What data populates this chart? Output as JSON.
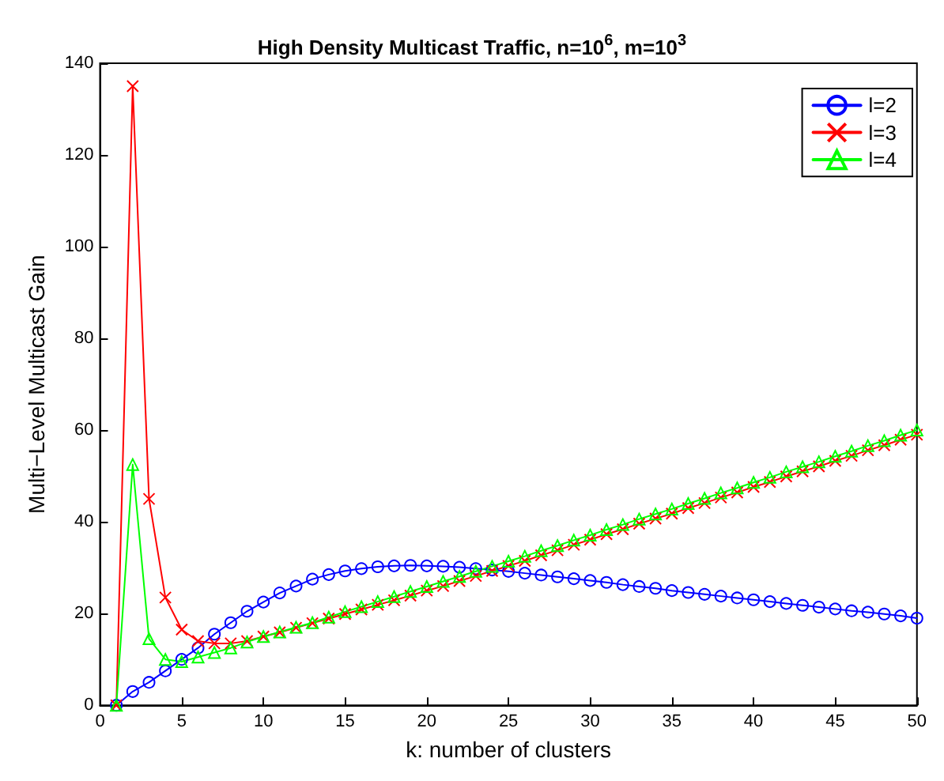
{
  "chart_data": {
    "type": "line",
    "title": "High Density Multicast Traffic, n=10$^{6}$, m=10$^{3}$",
    "xlabel": "k: number of clusters",
    "ylabel": "Multi−Level Multicast Gain",
    "x": [
      1,
      2,
      3,
      4,
      5,
      6,
      7,
      8,
      9,
      10,
      11,
      12,
      13,
      14,
      15,
      16,
      17,
      18,
      19,
      20,
      21,
      22,
      23,
      24,
      25,
      26,
      27,
      28,
      29,
      30,
      31,
      32,
      33,
      34,
      35,
      36,
      37,
      38,
      39,
      40,
      41,
      42,
      43,
      44,
      45,
      46,
      47,
      48,
      49,
      50
    ],
    "series": [
      {
        "name": "l=2",
        "color": "#0000ff",
        "marker": "circle",
        "values": [
          0,
          3,
          5,
          7.5,
          10,
          12.5,
          15.5,
          18,
          20.5,
          22.5,
          24.5,
          26,
          27.5,
          28.5,
          29.3,
          29.8,
          30.2,
          30.4,
          30.5,
          30.4,
          30.3,
          30.1,
          29.8,
          29.5,
          29.2,
          28.8,
          28.4,
          28,
          27.6,
          27.2,
          26.8,
          26.3,
          25.9,
          25.5,
          25,
          24.6,
          24.2,
          23.8,
          23.4,
          23,
          22.6,
          22.2,
          21.8,
          21.4,
          21,
          20.6,
          20.3,
          19.9,
          19.5,
          19
        ]
      },
      {
        "name": "l=3",
        "color": "#ff0000",
        "marker": "cross",
        "values": [
          0,
          135,
          45,
          23.5,
          16.5,
          14,
          13.5,
          13.5,
          14,
          15,
          15.9,
          16.9,
          17.9,
          18.9,
          19.9,
          20.9,
          21.9,
          22.9,
          23.9,
          25,
          26,
          27.1,
          28.2,
          29.3,
          30.4,
          31.5,
          32.7,
          33.8,
          35,
          36.1,
          37.3,
          38.4,
          39.6,
          40.7,
          41.8,
          43,
          44.1,
          45.3,
          46.4,
          47.6,
          48.7,
          49.9,
          51,
          52.1,
          53.3,
          54.4,
          55.6,
          56.7,
          57.9,
          59
        ]
      },
      {
        "name": "l=4",
        "color": "#00ff00",
        "marker": "triangle",
        "values": [
          0,
          52.5,
          14.5,
          10,
          9.5,
          10.5,
          11.5,
          12.5,
          13.8,
          15,
          16,
          17,
          18,
          19.2,
          20.4,
          21.5,
          22.6,
          23.7,
          24.8,
          25.9,
          27,
          28.1,
          29.2,
          30.3,
          31.4,
          32.5,
          33.7,
          34.8,
          36,
          37.1,
          38.3,
          39.4,
          40.6,
          41.7,
          42.8,
          44,
          45.1,
          46.3,
          47.4,
          48.6,
          49.7,
          50.9,
          52,
          53.1,
          54.3,
          55.4,
          56.6,
          57.7,
          58.9,
          60
        ]
      }
    ],
    "xlim": [
      0,
      50
    ],
    "xticks": [
      0,
      5,
      10,
      15,
      20,
      25,
      30,
      35,
      40,
      45,
      50
    ],
    "ylim": [
      0,
      140
    ],
    "yticks": [
      0,
      20,
      40,
      60,
      80,
      100,
      120,
      140
    ],
    "grid": false,
    "legend": "top right",
    "line_style": "solid"
  }
}
